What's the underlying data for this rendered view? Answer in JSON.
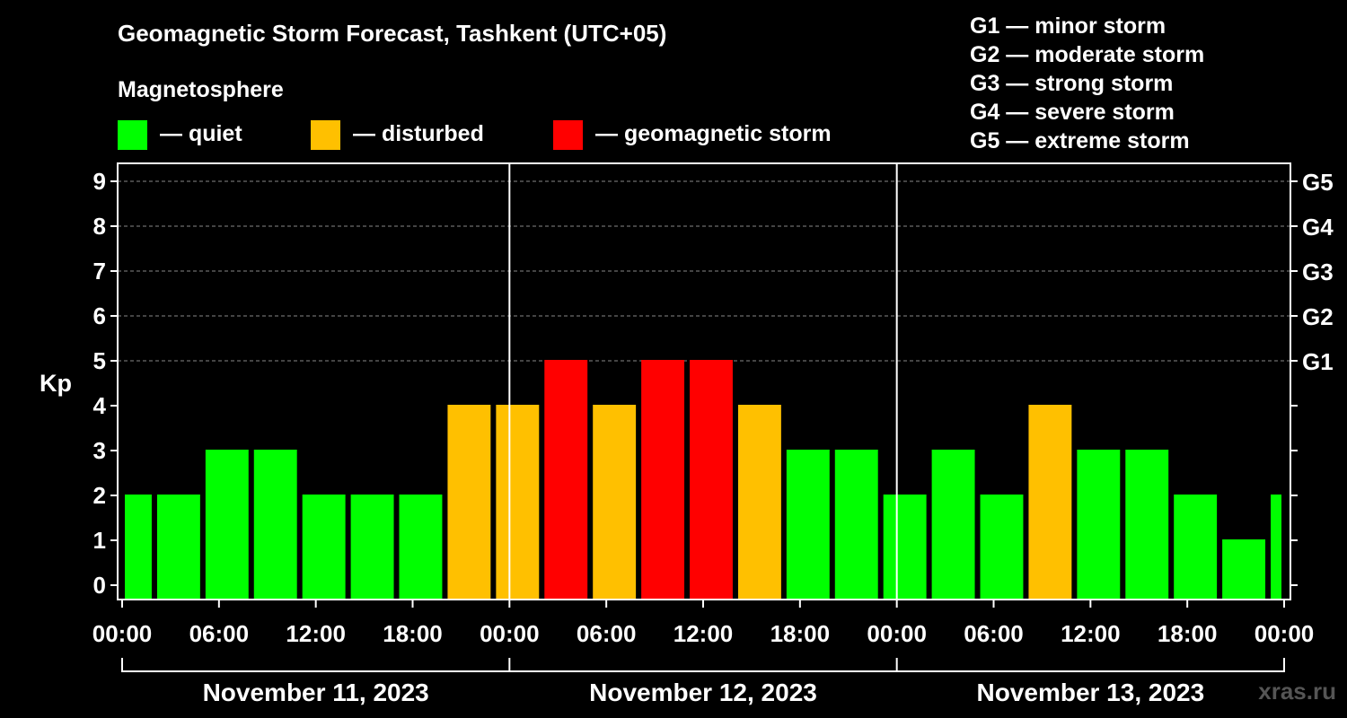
{
  "title": "Geomagnetic Storm Forecast, Tashkent (UTC+05)",
  "subtitle": "Magnetosphere",
  "legend": [
    {
      "label": "— quiet",
      "color": "#00ff00"
    },
    {
      "label": "— disturbed",
      "color": "#ffc000"
    },
    {
      "label": "— geomagnetic storm",
      "color": "#ff0000"
    }
  ],
  "g_legend": [
    "G1 — minor storm",
    "G2 — moderate storm",
    "G3 — strong storm",
    "G4 — severe storm",
    "G5 — extreme storm"
  ],
  "watermark": "xras.ru",
  "chart_data": {
    "type": "bar",
    "title": "Geomagnetic Storm Forecast, Tashkent (UTC+05)",
    "ylabel": "Kp",
    "ylim": [
      0,
      9
    ],
    "xlim_hours": [
      0,
      72
    ],
    "y_ticks": [
      "0",
      "1",
      "2",
      "3",
      "4",
      "5",
      "6",
      "7",
      "8",
      "9"
    ],
    "right_ticks": [
      {
        "kp": 5,
        "label": "G1"
      },
      {
        "kp": 6,
        "label": "G2"
      },
      {
        "kp": 7,
        "label": "G3"
      },
      {
        "kp": 8,
        "label": "G4"
      },
      {
        "kp": 9,
        "label": "G5"
      }
    ],
    "x_tick_labels": [
      "00:00",
      "06:00",
      "12:00",
      "18:00",
      "00:00",
      "06:00",
      "12:00",
      "18:00",
      "00:00",
      "06:00",
      "12:00",
      "18:00",
      "00:00"
    ],
    "dates": [
      "November 11, 2023",
      "November 12, 2023",
      "November 13, 2023"
    ],
    "bars": [
      {
        "start": 0,
        "end": 2,
        "kp": 2,
        "level": "quiet"
      },
      {
        "start": 2,
        "end": 5,
        "kp": 2,
        "level": "quiet"
      },
      {
        "start": 5,
        "end": 8,
        "kp": 3,
        "level": "quiet"
      },
      {
        "start": 8,
        "end": 11,
        "kp": 3,
        "level": "quiet"
      },
      {
        "start": 11,
        "end": 14,
        "kp": 2,
        "level": "quiet"
      },
      {
        "start": 14,
        "end": 17,
        "kp": 2,
        "level": "quiet"
      },
      {
        "start": 17,
        "end": 20,
        "kp": 2,
        "level": "quiet"
      },
      {
        "start": 20,
        "end": 23,
        "kp": 4,
        "level": "disturbed"
      },
      {
        "start": 23,
        "end": 26,
        "kp": 4,
        "level": "disturbed"
      },
      {
        "start": 26,
        "end": 29,
        "kp": 5,
        "level": "storm"
      },
      {
        "start": 29,
        "end": 32,
        "kp": 4,
        "level": "disturbed"
      },
      {
        "start": 32,
        "end": 35,
        "kp": 5,
        "level": "storm"
      },
      {
        "start": 35,
        "end": 38,
        "kp": 5,
        "level": "storm"
      },
      {
        "start": 38,
        "end": 41,
        "kp": 4,
        "level": "disturbed"
      },
      {
        "start": 41,
        "end": 44,
        "kp": 3,
        "level": "quiet"
      },
      {
        "start": 44,
        "end": 47,
        "kp": 3,
        "level": "quiet"
      },
      {
        "start": 47,
        "end": 50,
        "kp": 2,
        "level": "quiet"
      },
      {
        "start": 50,
        "end": 53,
        "kp": 3,
        "level": "quiet"
      },
      {
        "start": 53,
        "end": 56,
        "kp": 2,
        "level": "quiet"
      },
      {
        "start": 56,
        "end": 59,
        "kp": 4,
        "level": "disturbed"
      },
      {
        "start": 59,
        "end": 62,
        "kp": 3,
        "level": "quiet"
      },
      {
        "start": 62,
        "end": 65,
        "kp": 3,
        "level": "quiet"
      },
      {
        "start": 65,
        "end": 68,
        "kp": 2,
        "level": "quiet"
      },
      {
        "start": 68,
        "end": 71,
        "kp": 1,
        "level": "quiet"
      },
      {
        "start": 71,
        "end": 72,
        "kp": 2,
        "level": "quiet"
      }
    ],
    "level_colors": {
      "quiet": "#00ff00",
      "disturbed": "#ffc000",
      "storm": "#ff0000"
    }
  }
}
